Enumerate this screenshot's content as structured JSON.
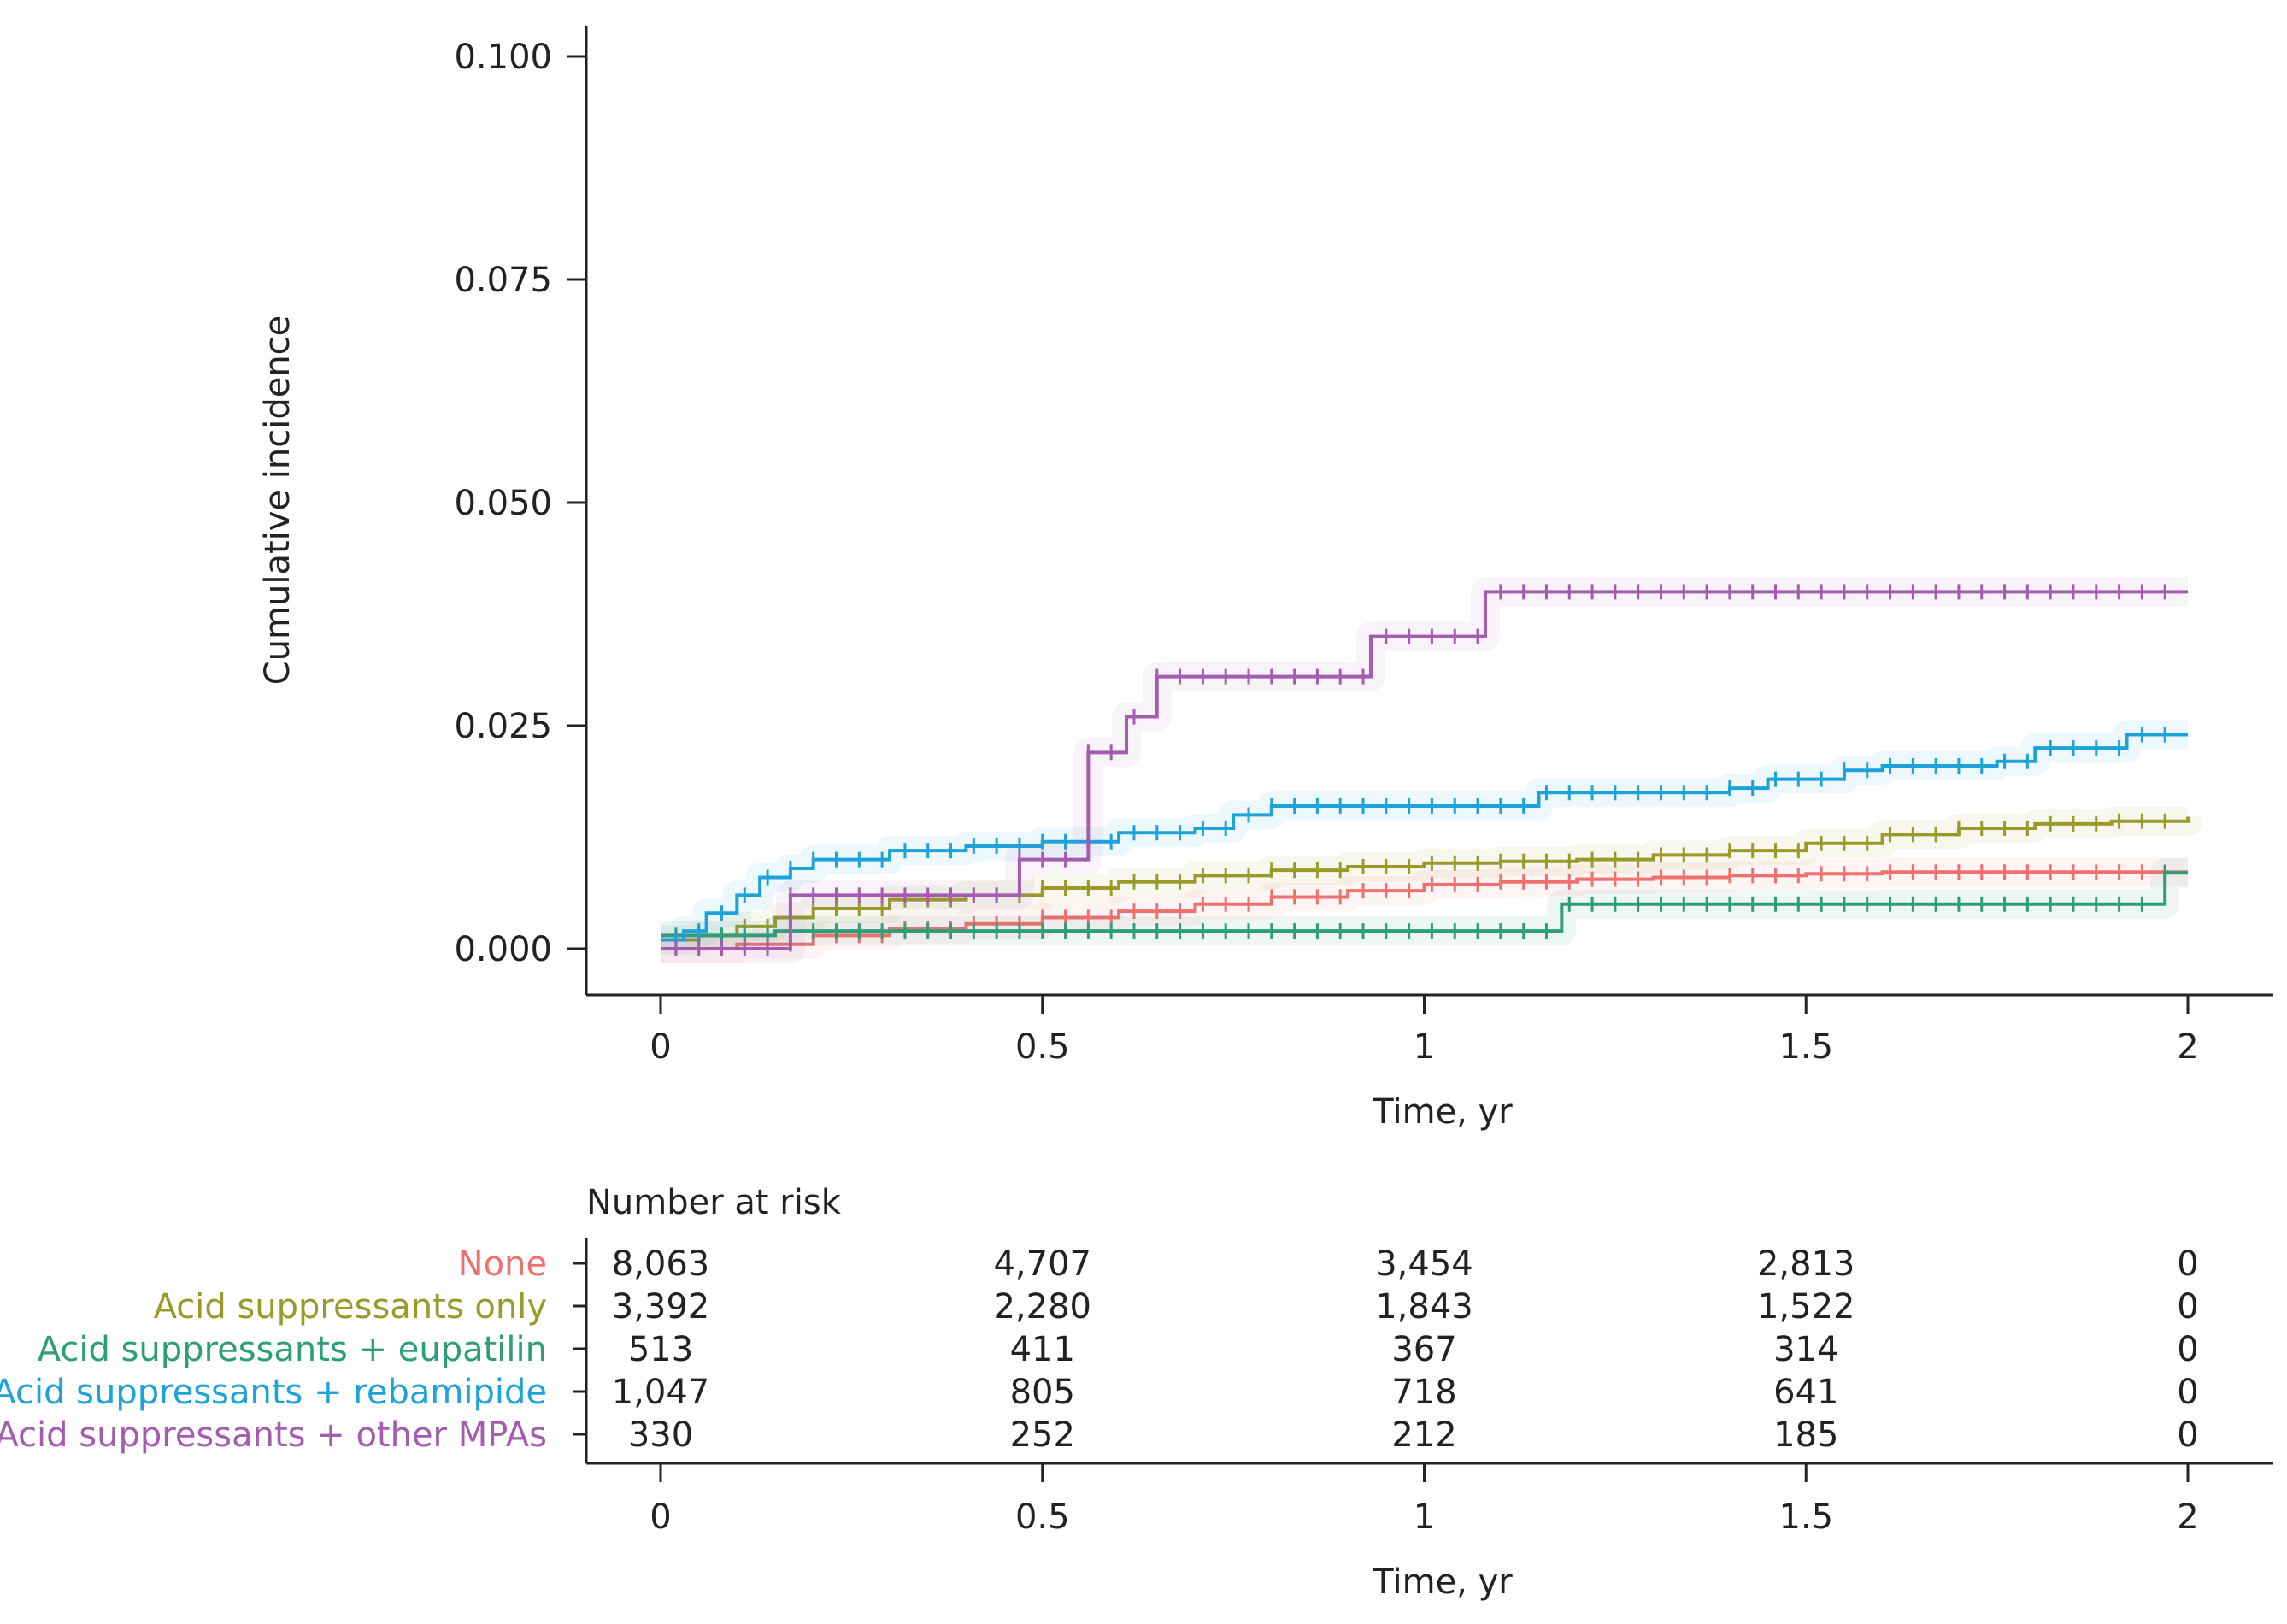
{
  "chart_data": {
    "type": "line",
    "subtype": "cumulative-incidence-step",
    "ylabel": "Cumulative incidence",
    "xlabel": "Time, yr",
    "xlim": [
      0,
      2
    ],
    "ylim": [
      0,
      0.1
    ],
    "x_ticks": [
      0,
      0.5,
      1,
      1.5,
      2
    ],
    "x_tick_labels": [
      "0",
      "0.5",
      "1",
      "1.5",
      "2"
    ],
    "y_ticks": [
      0,
      0.025,
      0.05,
      0.075,
      0.1
    ],
    "y_tick_labels": [
      "0.000",
      "0.025",
      "0.050",
      "0.075",
      "0.100"
    ],
    "series": [
      {
        "name": "None",
        "color": "#f07070",
        "points": [
          [
            0,
            0.0
          ],
          [
            0.1,
            0.0005
          ],
          [
            0.2,
            0.0015
          ],
          [
            0.3,
            0.0022
          ],
          [
            0.4,
            0.0028
          ],
          [
            0.5,
            0.0035
          ],
          [
            0.6,
            0.0042
          ],
          [
            0.7,
            0.005
          ],
          [
            0.8,
            0.0058
          ],
          [
            0.9,
            0.0065
          ],
          [
            1.0,
            0.0072
          ],
          [
            1.1,
            0.0075
          ],
          [
            1.2,
            0.0078
          ],
          [
            1.3,
            0.008
          ],
          [
            1.4,
            0.0082
          ],
          [
            1.5,
            0.0084
          ],
          [
            1.6,
            0.0086
          ],
          [
            1.7,
            0.0086
          ],
          [
            1.8,
            0.0086
          ],
          [
            1.9,
            0.0086
          ],
          [
            2.0,
            0.0086
          ]
        ]
      },
      {
        "name": "Acid suppressants only",
        "color": "#9a9a2a",
        "points": [
          [
            0,
            0.001
          ],
          [
            0.05,
            0.0015
          ],
          [
            0.1,
            0.0025
          ],
          [
            0.15,
            0.0035
          ],
          [
            0.2,
            0.0045
          ],
          [
            0.3,
            0.0055
          ],
          [
            0.4,
            0.006
          ],
          [
            0.5,
            0.0068
          ],
          [
            0.6,
            0.0075
          ],
          [
            0.7,
            0.0082
          ],
          [
            0.8,
            0.0088
          ],
          [
            0.9,
            0.0092
          ],
          [
            1.0,
            0.0096
          ],
          [
            1.1,
            0.0098
          ],
          [
            1.2,
            0.01
          ],
          [
            1.3,
            0.0105
          ],
          [
            1.4,
            0.011
          ],
          [
            1.5,
            0.0118
          ],
          [
            1.6,
            0.0128
          ],
          [
            1.7,
            0.0135
          ],
          [
            1.8,
            0.014
          ],
          [
            1.9,
            0.0143
          ],
          [
            2.0,
            0.0148
          ]
        ]
      },
      {
        "name": "Acid suppressants + eupatilin",
        "color": "#2e9e7a",
        "points": [
          [
            0,
            0.0015
          ],
          [
            0.1,
            0.0015
          ],
          [
            0.15,
            0.002
          ],
          [
            0.3,
            0.002
          ],
          [
            0.5,
            0.002
          ],
          [
            0.8,
            0.002
          ],
          [
            1.0,
            0.002
          ],
          [
            1.16,
            0.002
          ],
          [
            1.18,
            0.005
          ],
          [
            1.5,
            0.005
          ],
          [
            1.96,
            0.005
          ],
          [
            1.97,
            0.0085
          ],
          [
            2.0,
            0.0085
          ]
        ]
      },
      {
        "name": "Acid suppressants + rebamipide",
        "color": "#1ea3d8",
        "points": [
          [
            0,
            0.001
          ],
          [
            0.03,
            0.002
          ],
          [
            0.06,
            0.004
          ],
          [
            0.1,
            0.006
          ],
          [
            0.13,
            0.008
          ],
          [
            0.17,
            0.009
          ],
          [
            0.2,
            0.01
          ],
          [
            0.3,
            0.011
          ],
          [
            0.4,
            0.0115
          ],
          [
            0.5,
            0.012
          ],
          [
            0.6,
            0.013
          ],
          [
            0.7,
            0.0135
          ],
          [
            0.75,
            0.015
          ],
          [
            0.8,
            0.016
          ],
          [
            1.0,
            0.016
          ],
          [
            1.1,
            0.016
          ],
          [
            1.15,
            0.0175
          ],
          [
            1.3,
            0.0175
          ],
          [
            1.4,
            0.018
          ],
          [
            1.45,
            0.019
          ],
          [
            1.55,
            0.02
          ],
          [
            1.6,
            0.0205
          ],
          [
            1.75,
            0.021
          ],
          [
            1.8,
            0.0225
          ],
          [
            1.9,
            0.0225
          ],
          [
            1.92,
            0.024
          ],
          [
            2.0,
            0.024
          ]
        ]
      },
      {
        "name": "Acid suppressants + other MPAs",
        "color": "#a45cb0",
        "points": [
          [
            0,
            0.0
          ],
          [
            0.15,
            0.0
          ],
          [
            0.17,
            0.006
          ],
          [
            0.3,
            0.006
          ],
          [
            0.46,
            0.006
          ],
          [
            0.47,
            0.01
          ],
          [
            0.55,
            0.01
          ],
          [
            0.56,
            0.022
          ],
          [
            0.6,
            0.022
          ],
          [
            0.61,
            0.026
          ],
          [
            0.64,
            0.026
          ],
          [
            0.65,
            0.0305
          ],
          [
            0.92,
            0.0305
          ],
          [
            0.93,
            0.035
          ],
          [
            1.07,
            0.035
          ],
          [
            1.08,
            0.04
          ],
          [
            2.0,
            0.04
          ]
        ]
      }
    ],
    "risk_table": {
      "title": "Number at risk",
      "xlabel": "Time, yr",
      "times": [
        "0",
        "0.5",
        "1",
        "1.5",
        "2"
      ],
      "rows": [
        {
          "name": "None",
          "color": "#f07070",
          "values": [
            "8,063",
            "4,707",
            "3,454",
            "2,813",
            "0"
          ]
        },
        {
          "name": "Acid suppressants only",
          "color": "#9a9a2a",
          "values": [
            "3,392",
            "2,280",
            "1,843",
            "1,522",
            "0"
          ]
        },
        {
          "name": "Acid suppressants + eupatilin",
          "color": "#2e9e7a",
          "values": [
            "513",
            "411",
            "367",
            "314",
            "0"
          ]
        },
        {
          "name": "Acid suppressants + rebamipide",
          "color": "#1ea3d8",
          "values": [
            "1,047",
            "805",
            "718",
            "641",
            "0"
          ]
        },
        {
          "name": "Acid suppressants + other MPAs",
          "color": "#a45cb0",
          "values": [
            "330",
            "252",
            "212",
            "185",
            "0"
          ]
        }
      ]
    }
  }
}
